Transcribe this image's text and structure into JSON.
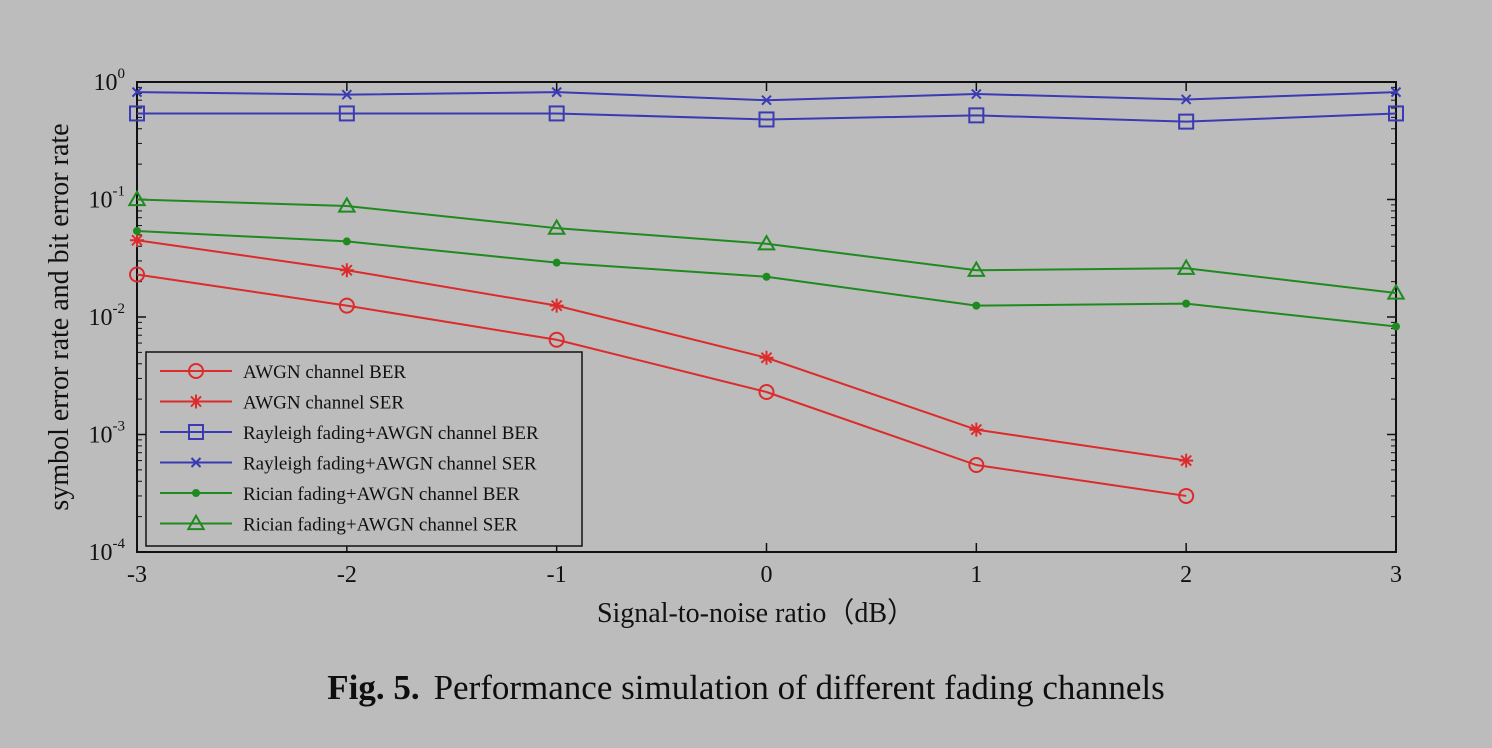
{
  "chart_data": {
    "type": "line",
    "yscale": "log",
    "xlabel": "Signal-to-noise ratio（dB）",
    "ylabel": "symbol error rate and bit error rate",
    "xlim": [
      -3,
      3
    ],
    "ylim": [
      0.0001,
      1
    ],
    "xticks": [
      "-3",
      "-2",
      "-1",
      "0",
      "1",
      "2",
      "3"
    ],
    "yticks": [
      {
        "base": "10",
        "exp": "0"
      },
      {
        "base": "10",
        "exp": "-1"
      },
      {
        "base": "10",
        "exp": "-2"
      },
      {
        "base": "10",
        "exp": "-3"
      },
      {
        "base": "10",
        "exp": "-4"
      }
    ],
    "legend_position": "bottom-left",
    "series": [
      {
        "name": "AWGN channel BER",
        "color": "#dd2a2a",
        "marker": "circle",
        "x": [
          -3,
          -2,
          -1,
          0,
          1,
          2
        ],
        "y": [
          0.023,
          0.0125,
          0.0064,
          0.0023,
          0.00055,
          0.0003
        ]
      },
      {
        "name": "AWGN channel SER",
        "color": "#dd2a2a",
        "marker": "star",
        "x": [
          -3,
          -2,
          -1,
          0,
          1,
          2
        ],
        "y": [
          0.045,
          0.025,
          0.0125,
          0.0045,
          0.0011,
          0.0006
        ]
      },
      {
        "name": "Rayleigh fading+AWGN channel BER",
        "color": "#3a3ab4",
        "marker": "square",
        "x": [
          -3,
          -2,
          -1,
          0,
          1,
          2,
          3
        ],
        "y": [
          0.54,
          0.54,
          0.54,
          0.48,
          0.52,
          0.46,
          0.54
        ]
      },
      {
        "name": "Rayleigh fading+AWGN channel SER",
        "color": "#3a3ab4",
        "marker": "x",
        "x": [
          -3,
          -2,
          -1,
          0,
          1,
          2,
          3
        ],
        "y": [
          0.82,
          0.78,
          0.82,
          0.7,
          0.79,
          0.71,
          0.82
        ]
      },
      {
        "name": "Rician fading+AWGN channel BER",
        "color": "#1f8a1f",
        "marker": "dot",
        "x": [
          -3,
          -2,
          -1,
          0,
          1,
          2,
          3
        ],
        "y": [
          0.054,
          0.044,
          0.029,
          0.022,
          0.0125,
          0.013,
          0.0083
        ]
      },
      {
        "name": "Rician fading+AWGN channel SER",
        "color": "#1f8a1f",
        "marker": "triangle",
        "x": [
          -3,
          -2,
          -1,
          0,
          1,
          2,
          3
        ],
        "y": [
          0.1,
          0.088,
          0.057,
          0.042,
          0.025,
          0.026,
          0.016
        ]
      }
    ]
  },
  "caption": {
    "label": "Fig. 5.",
    "text": "Performance simulation of different fading channels"
  }
}
